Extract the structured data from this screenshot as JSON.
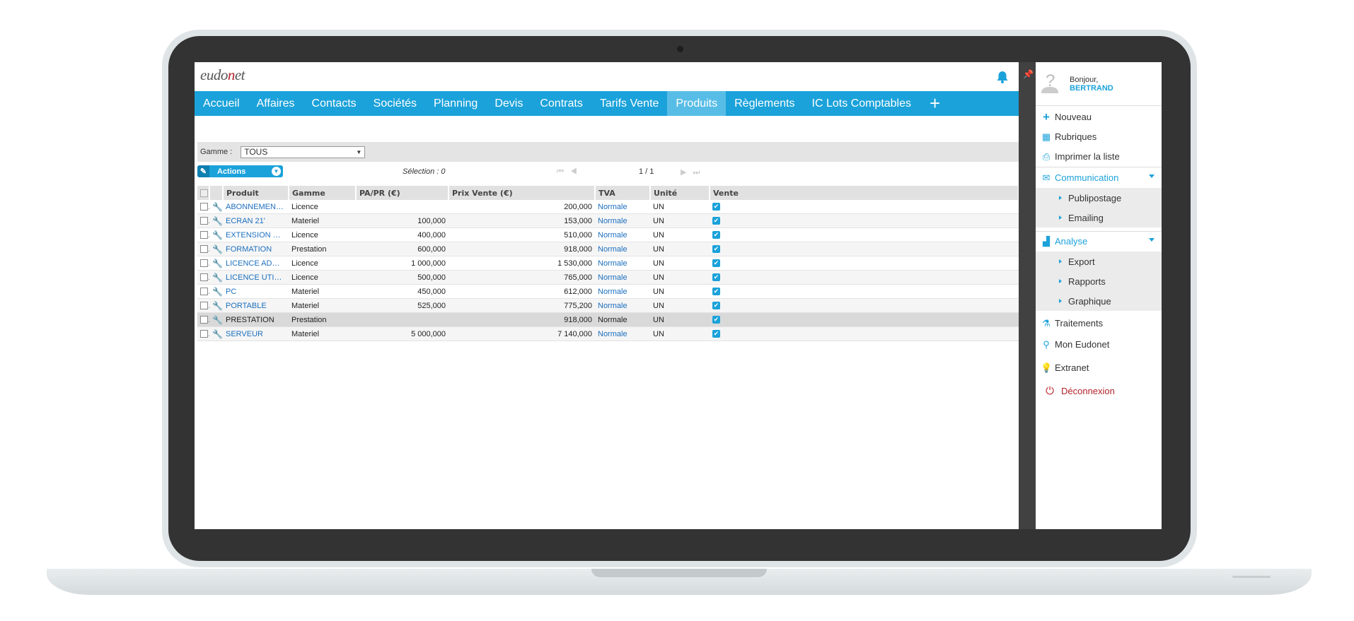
{
  "app": {
    "logo_prefix": "eudo",
    "logo_n": "n",
    "logo_suffix": "et"
  },
  "nav": {
    "items": [
      "Accueil",
      "Affaires",
      "Contacts",
      "Sociétés",
      "Planning",
      "Devis",
      "Contrats",
      "Tarifs Vente",
      "Produits",
      "Règlements",
      "IC Lots Comptables"
    ],
    "active": "Produits",
    "add_label": "+"
  },
  "filter": {
    "label": "Gamme :",
    "value": "TOUS"
  },
  "toolbar": {
    "actions_label": "Actions",
    "selection": "Sélection : 0",
    "page_info": "1 / 1"
  },
  "table": {
    "headers": [
      "Produit",
      "Gamme",
      "PA/PR (€)",
      "Prix Vente (€)",
      "TVA",
      "Unité",
      "Vente"
    ],
    "rows": [
      {
        "produit": "ABONNEMENT ME...",
        "gamme": "Licence",
        "papr": "",
        "prix": "200,000",
        "tva": "Normale",
        "unite": "UN",
        "vente": true
      },
      {
        "produit": "ECRAN 21'",
        "gamme": "Materiel",
        "papr": "100,000",
        "prix": "153,000",
        "tva": "Normale",
        "unite": "UN",
        "vente": true
      },
      {
        "produit": "EXTENSION GAR...",
        "gamme": "Licence",
        "papr": "400,000",
        "prix": "510,000",
        "tva": "Normale",
        "unite": "UN",
        "vente": true
      },
      {
        "produit": "FORMATION",
        "gamme": "Prestation",
        "papr": "600,000",
        "prix": "918,000",
        "tva": "Normale",
        "unite": "UN",
        "vente": true
      },
      {
        "produit": "LICENCE ADMINI...",
        "gamme": "Licence",
        "papr": "1 000,000",
        "prix": "1 530,000",
        "tva": "Normale",
        "unite": "UN",
        "vente": true
      },
      {
        "produit": "LICENCE UTILISA...",
        "gamme": "Licence",
        "papr": "500,000",
        "prix": "765,000",
        "tva": "Normale",
        "unite": "UN",
        "vente": true
      },
      {
        "produit": "PC",
        "gamme": "Materiel",
        "papr": "450,000",
        "prix": "612,000",
        "tva": "Normale",
        "unite": "UN",
        "vente": true
      },
      {
        "produit": "PORTABLE",
        "gamme": "Materiel",
        "papr": "525,000",
        "prix": "775,200",
        "tva": "Normale",
        "unite": "UN",
        "vente": true
      },
      {
        "produit": "PRESTATION",
        "gamme": "Prestation",
        "papr": "",
        "prix": "918,000",
        "tva": "Normale",
        "unite": "UN",
        "vente": true
      },
      {
        "produit": "SERVEUR",
        "gamme": "Materiel",
        "papr": "5 000,000",
        "prix": "7 140,000",
        "tva": "Normale",
        "unite": "UN",
        "vente": true
      }
    ],
    "selected_row": "PRESTATION"
  },
  "sidebar": {
    "greeting": "Bonjour,",
    "user": "BERTRAND",
    "nouveau": "Nouveau",
    "rubriques": "Rubriques",
    "imprimer": "Imprimer la liste",
    "communication": "Communication",
    "communication_sub": [
      "Publipostage",
      "Emailing"
    ],
    "analyse": "Analyse",
    "analyse_sub": [
      "Export",
      "Rapports",
      "Graphique"
    ],
    "traitements": "Traitements",
    "mon_eudonet": "Mon Eudonet",
    "extranet": "Extranet",
    "deconnexion": "Déconnexion"
  },
  "colors": {
    "accent": "#1ba2da",
    "nav_active": "#58bde6",
    "logout": "#b4232a"
  }
}
